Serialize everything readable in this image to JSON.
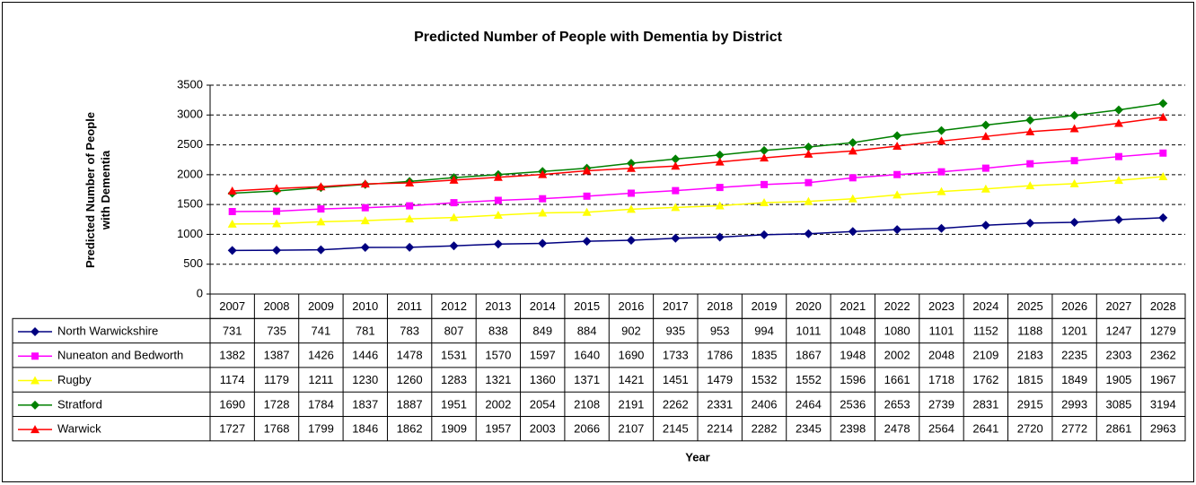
{
  "chart_data": {
    "type": "line",
    "title": "Predicted Number of People with Dementia by District",
    "y_label": "Predicted Number of People with Dementia",
    "x_label": "Year",
    "categories": [
      "2007",
      "2008",
      "2009",
      "2010",
      "2011",
      "2012",
      "2013",
      "2014",
      "2015",
      "2016",
      "2017",
      "2018",
      "2019",
      "2020",
      "2021",
      "2022",
      "2023",
      "2024",
      "2025",
      "2026",
      "2027",
      "2028"
    ],
    "ylim": [
      0,
      3500
    ],
    "yticks": [
      0,
      500,
      1000,
      1500,
      2000,
      2500,
      3000,
      3500
    ],
    "grid": true,
    "series": [
      {
        "name": "North Warwickshire",
        "color": "#000080",
        "marker": "diamond",
        "values": [
          731,
          735,
          741,
          781,
          783,
          807,
          838,
          849,
          884,
          902,
          935,
          953,
          994,
          1011,
          1048,
          1080,
          1101,
          1152,
          1188,
          1201,
          1247,
          1279
        ]
      },
      {
        "name": "Nuneaton and Bedworth",
        "color": "#ff00ff",
        "marker": "square",
        "values": [
          1382,
          1387,
          1426,
          1446,
          1478,
          1531,
          1570,
          1597,
          1640,
          1690,
          1733,
          1786,
          1835,
          1867,
          1948,
          2002,
          2048,
          2109,
          2183,
          2235,
          2303,
          2362
        ]
      },
      {
        "name": "Rugby",
        "color": "#ffff00",
        "marker": "triangle",
        "values": [
          1174,
          1179,
          1211,
          1230,
          1260,
          1283,
          1321,
          1360,
          1371,
          1421,
          1451,
          1479,
          1532,
          1552,
          1596,
          1661,
          1718,
          1762,
          1815,
          1849,
          1905,
          1967
        ]
      },
      {
        "name": "Stratford",
        "color": "#008000",
        "marker": "diamond",
        "values": [
          1690,
          1728,
          1784,
          1837,
          1887,
          1951,
          2002,
          2054,
          2108,
          2191,
          2262,
          2331,
          2406,
          2464,
          2536,
          2653,
          2739,
          2831,
          2915,
          2993,
          3085,
          3194
        ]
      },
      {
        "name": "Warwick",
        "color": "#ff0000",
        "marker": "triangle",
        "values": [
          1727,
          1768,
          1799,
          1846,
          1862,
          1909,
          1957,
          2003,
          2066,
          2107,
          2145,
          2214,
          2282,
          2345,
          2398,
          2478,
          2564,
          2641,
          2720,
          2772,
          2861,
          2963
        ]
      }
    ]
  }
}
